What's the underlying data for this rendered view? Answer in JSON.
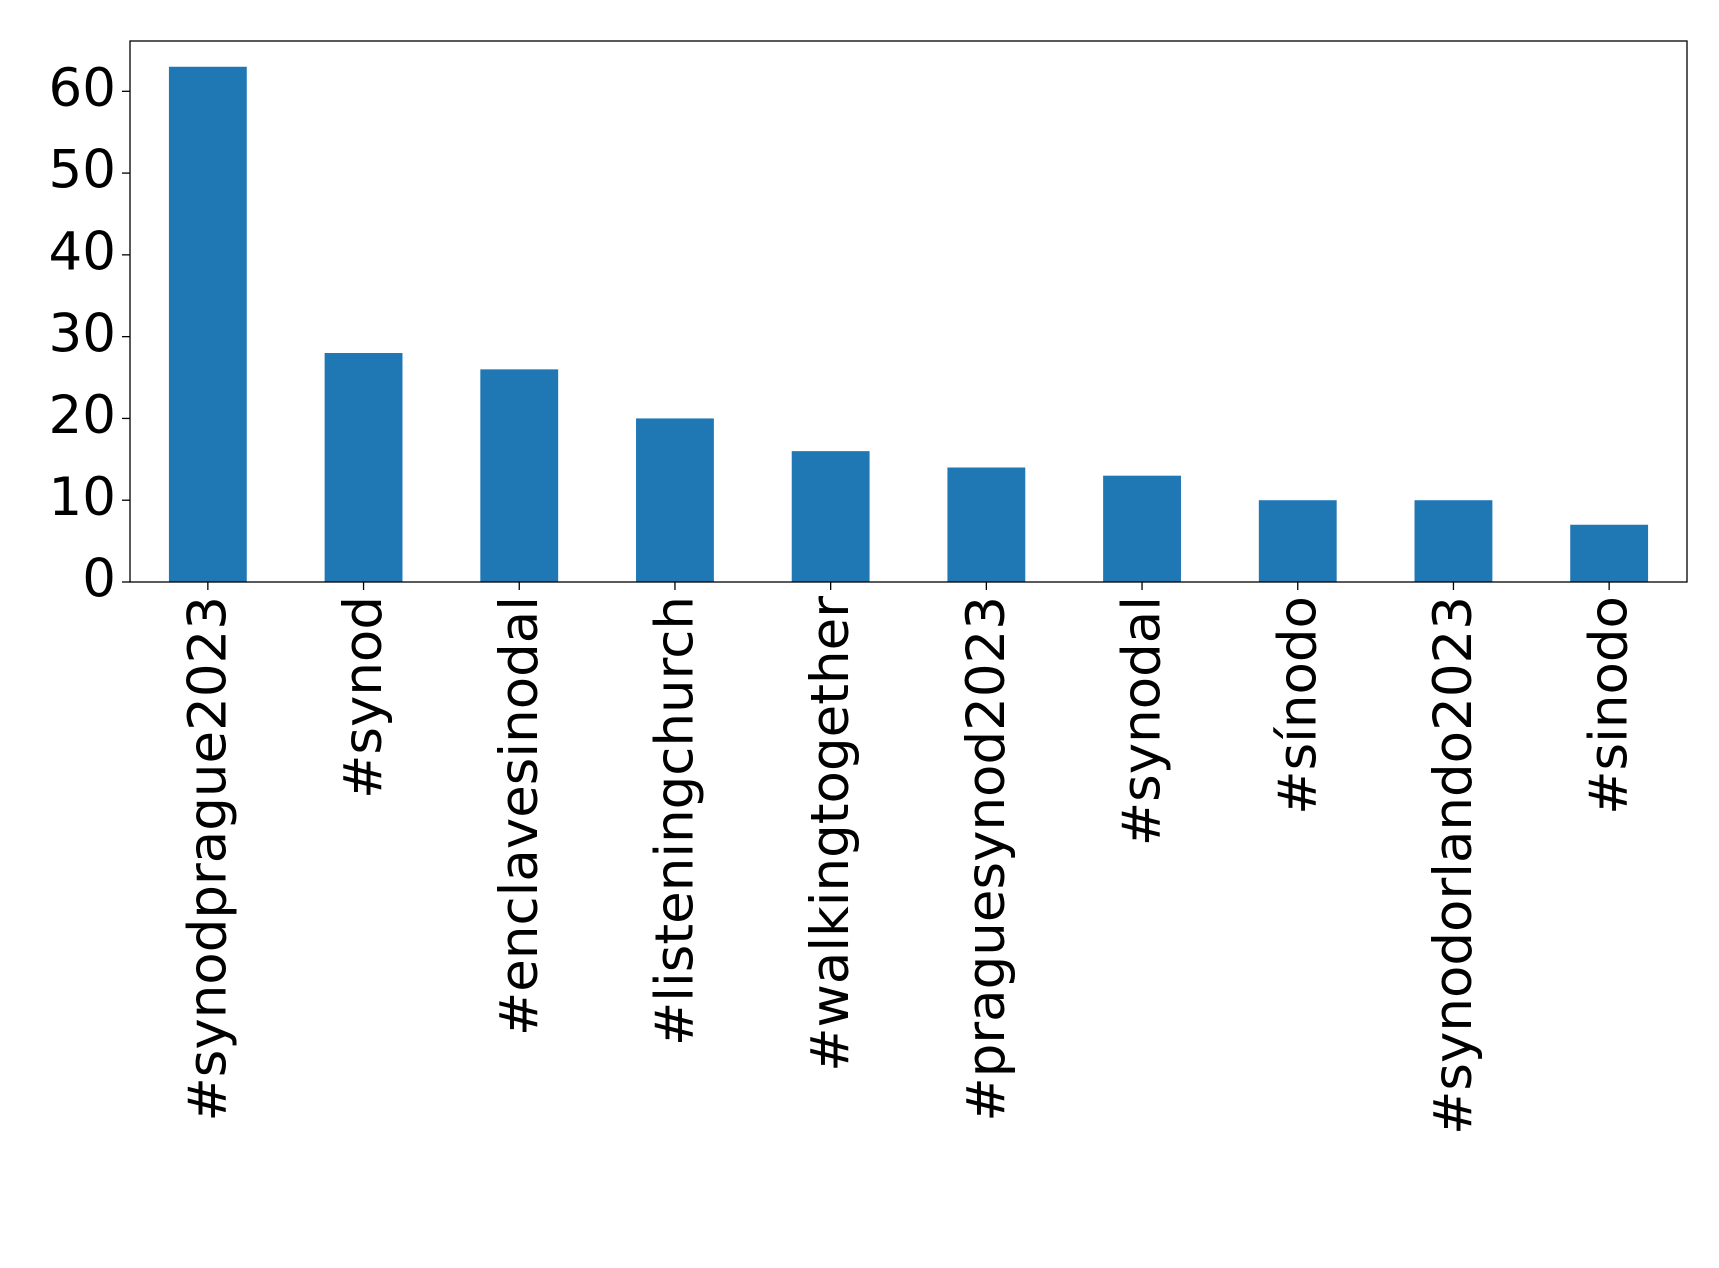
{
  "chart_data": {
    "type": "bar",
    "categories": [
      "#synodprague2023",
      "#synod",
      "#enclavesinodal",
      "#listeningchurch",
      "#walkingtogether",
      "#praguesynod2023",
      "#synodal",
      "#sínodo",
      "#synodorlando2023",
      "#sinodo"
    ],
    "values": [
      63,
      28,
      26,
      20,
      16,
      14,
      13,
      10,
      10,
      7
    ],
    "color": "#1f77b4",
    "ylim": [
      0,
      66.15
    ],
    "yticks": [
      0,
      10,
      20,
      30,
      40,
      50,
      60
    ],
    "grid": false
  }
}
